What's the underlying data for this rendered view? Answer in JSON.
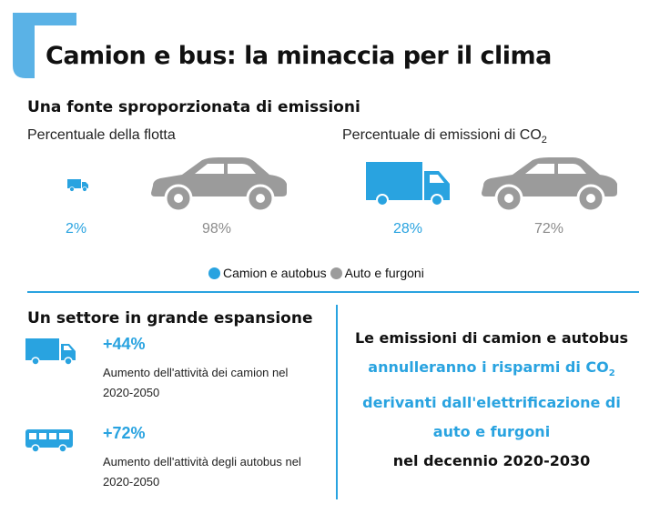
{
  "title": "Camion e bus: la minaccia per il clima",
  "colors": {
    "accent": "#29a3e0",
    "gray": "#9b9b9b"
  },
  "section1": {
    "heading": "Una fonte sproporzionata di emissioni",
    "fleet_label": "Percentuale della flotta",
    "emissions_label_prefix": "Percentuale di emissioni di CO",
    "emissions_label_sub": "2",
    "fleet": {
      "trucks_pct": "2%",
      "cars_pct": "98%"
    },
    "emissions": {
      "trucks_pct": "28%",
      "cars_pct": "72%"
    },
    "legend": [
      {
        "label": "Camion e autobus",
        "color": "#29a3e0"
      },
      {
        "label": "Auto e furgoni",
        "color": "#9b9b9b"
      }
    ]
  },
  "section2": {
    "heading": "Un settore in grande espansione",
    "items": [
      {
        "icon": "truck-icon",
        "value": "+44%",
        "desc": "Aumento dell'attività dei camion nel 2020-2050"
      },
      {
        "icon": "bus-icon",
        "value": "+72%",
        "desc": "Aumento dell'attività degli autobus nel 2020-2050"
      }
    ]
  },
  "statement": {
    "line1": "Le emissioni di camion e autobus",
    "line2_prefix": "annulleranno i risparmi di CO",
    "line2_sub": "2",
    "line3": "derivanti dall'elettrificazione di",
    "line4": "auto e furgoni",
    "line5": "nel decennio 2020-2030"
  }
}
